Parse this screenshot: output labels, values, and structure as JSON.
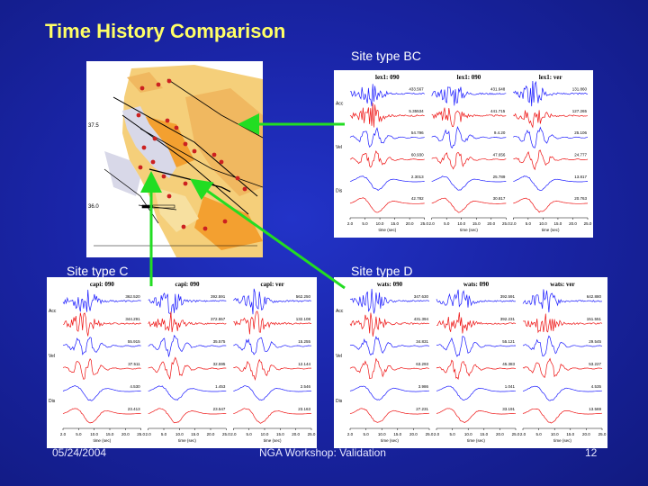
{
  "slide": {
    "title": "Time History Comparison",
    "footer_date": "05/24/2004",
    "footer_center": "NGA Workshop: Validation",
    "page_number": "12"
  },
  "labels": {
    "site_bc": "Site type BC",
    "site_c": "Site type C",
    "site_d": "Site type D"
  },
  "map": {
    "lat_labels": [
      "37.5",
      "36.0"
    ]
  },
  "panels": {
    "bc": {
      "headers": [
        "lex1: 090",
        "lex1: 090",
        "lex1: ver"
      ],
      "row_labels": [
        "Acc",
        "Vel",
        "Dis"
      ],
      "peaks": [
        [
          "433.567",
          "431.648",
          "131.860"
        ],
        [
          "5.35534",
          "441.715",
          "127.265"
        ],
        [
          "54.796",
          "9.4.20",
          "25.106"
        ],
        [
          "60.930",
          "47.656",
          "24.777"
        ],
        [
          "2.3013",
          "25.789",
          "13.817"
        ],
        [
          "42.782",
          "30.817",
          "20.763"
        ]
      ],
      "xlabel": "time (sec)"
    },
    "c": {
      "headers": [
        "capi: 090",
        "capi: 090",
        "capi: ver"
      ],
      "row_labels": [
        "Acc",
        "Vel",
        "Dis"
      ],
      "peaks": [
        [
          "362.520",
          "392.591",
          "562.250"
        ],
        [
          "344.291",
          "372.557",
          "132.108"
        ],
        [
          "55.915",
          "35.575",
          "15.255"
        ],
        [
          "37.511",
          "32.595",
          "12.144"
        ],
        [
          "4.530",
          "1.453",
          "2.546"
        ],
        [
          "23.413",
          "23.547",
          "23.163"
        ]
      ],
      "xlabel": "time (sec)"
    },
    "d": {
      "headers": [
        "wats: 090",
        "wats: 090",
        "wats: ver"
      ],
      "row_labels": [
        "Acc",
        "Vel",
        "Dis"
      ],
      "peaks": [
        [
          "347.630",
          "392.591",
          "642.880"
        ],
        [
          "431.394",
          "392.231",
          "151.551"
        ],
        [
          "34.831",
          "55.121",
          "29.545"
        ],
        [
          "63.293",
          "45.383",
          "53.227"
        ],
        [
          "3.986",
          "1.041",
          "4.535"
        ],
        [
          "27.231",
          "33.191",
          "13.569"
        ]
      ],
      "xlabel": "time (sec)"
    },
    "ticks": [
      "2.0",
      "5.0",
      "10.0",
      "15.0",
      "20.0",
      "25.0"
    ]
  },
  "colors": {
    "background": "#1a25a8",
    "title": "#ffff66",
    "arrow": "#22dd22",
    "trace_blue": "#1a1aff",
    "trace_red": "#ee1111"
  }
}
